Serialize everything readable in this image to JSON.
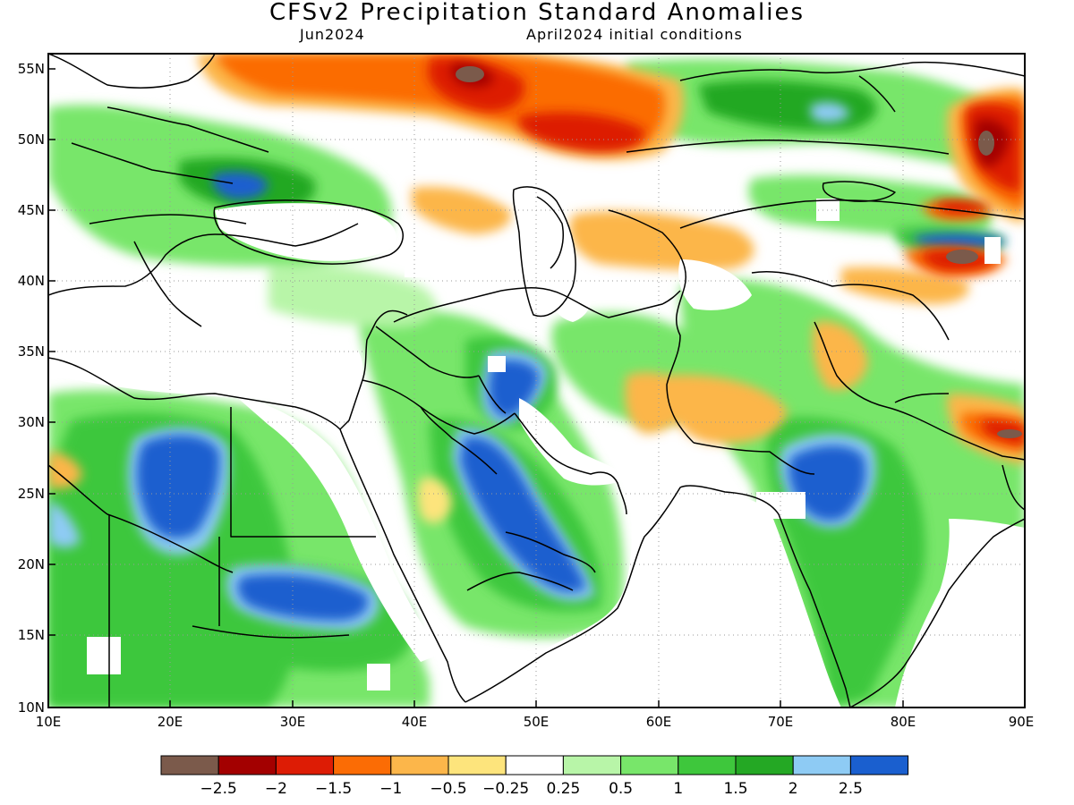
{
  "title": "CFSv2 Precipitation Standard Anomalies",
  "valid_month": "Jun2024",
  "initial_conditions": "April2024 initial conditions",
  "map": {
    "lat_labels": [
      "55N",
      "50N",
      "45N",
      "40N",
      "35N",
      "30N",
      "25N",
      "20N",
      "15N",
      "10N"
    ],
    "lon_labels": [
      "10E",
      "20E",
      "30E",
      "40E",
      "50E",
      "60E",
      "70E",
      "80E",
      "90E"
    ],
    "lat_range": [
      10,
      56
    ],
    "lon_range": [
      10,
      90
    ],
    "grid": "dotted"
  },
  "colorbar": {
    "colors": [
      "#7b5a4b",
      "#a30000",
      "#dd1c05",
      "#fb6c05",
      "#fcb64a",
      "#fde47c",
      "#ffffff",
      "#b8f5a8",
      "#78e66a",
      "#3ec73c",
      "#24a824",
      "#8ecbf4",
      "#1a5fcf"
    ],
    "labels": [
      "−2.5",
      "−2",
      "−1.5",
      "−1",
      "−0.5",
      "−0.25",
      "0.25",
      "0.5",
      "1",
      "1.5",
      "2",
      "2.5"
    ]
  }
}
